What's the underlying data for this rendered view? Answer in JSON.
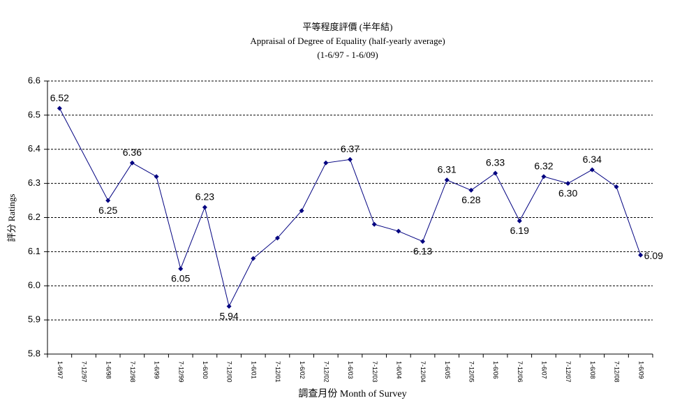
{
  "chart_data": {
    "type": "line",
    "title": "平等程度評價 (半年結)",
    "subtitle": "Appraisal of Degree of Equality (half-yearly average)",
    "period": "(1-6/97 - 1-6/09)",
    "y_label": "評分 Ratings",
    "x_label": "調查月份 Month of Survey",
    "categories": [
      "1-6/97",
      "7-12/97",
      "1-6/98",
      "7-12/98",
      "1-6/99",
      "7-12/99",
      "1-6/00",
      "7-12/00",
      "1-6/01",
      "7-12/01",
      "1-6/02",
      "7-12/02",
      "1-6/03",
      "7-12/03",
      "1-6/04",
      "7-12/04",
      "1-6/05",
      "7-12/05",
      "1-6/06",
      "7-12/06",
      "1-6/07",
      "7-12/07",
      "1-6/08",
      "7-12/08",
      "1-6/09"
    ],
    "values": [
      6.52,
      null,
      6.25,
      6.36,
      6.32,
      6.05,
      6.23,
      5.94,
      6.08,
      6.14,
      6.22,
      6.36,
      6.37,
      6.18,
      6.16,
      6.13,
      6.31,
      6.28,
      6.33,
      6.19,
      6.32,
      6.3,
      6.34,
      6.29,
      6.09
    ],
    "value_labels": [
      "6.52",
      null,
      "6.25",
      "6.36",
      null,
      "6.05",
      "6.23",
      "5.94",
      null,
      null,
      null,
      null,
      "6.37",
      null,
      null,
      "6.13",
      "6.31",
      "6.28",
      "6.33",
      "6.19",
      "6.32",
      "6.30",
      "6.34",
      null,
      "6.09"
    ],
    "color": "#000080",
    "ylim": [
      5.8,
      6.6
    ],
    "yticks": [
      5.8,
      5.9,
      {
        "value": 6,
        "label": "6.0"
      },
      6.1,
      6.2,
      6.3,
      6.4,
      6.5,
      6.6
    ],
    "grid": true
  }
}
